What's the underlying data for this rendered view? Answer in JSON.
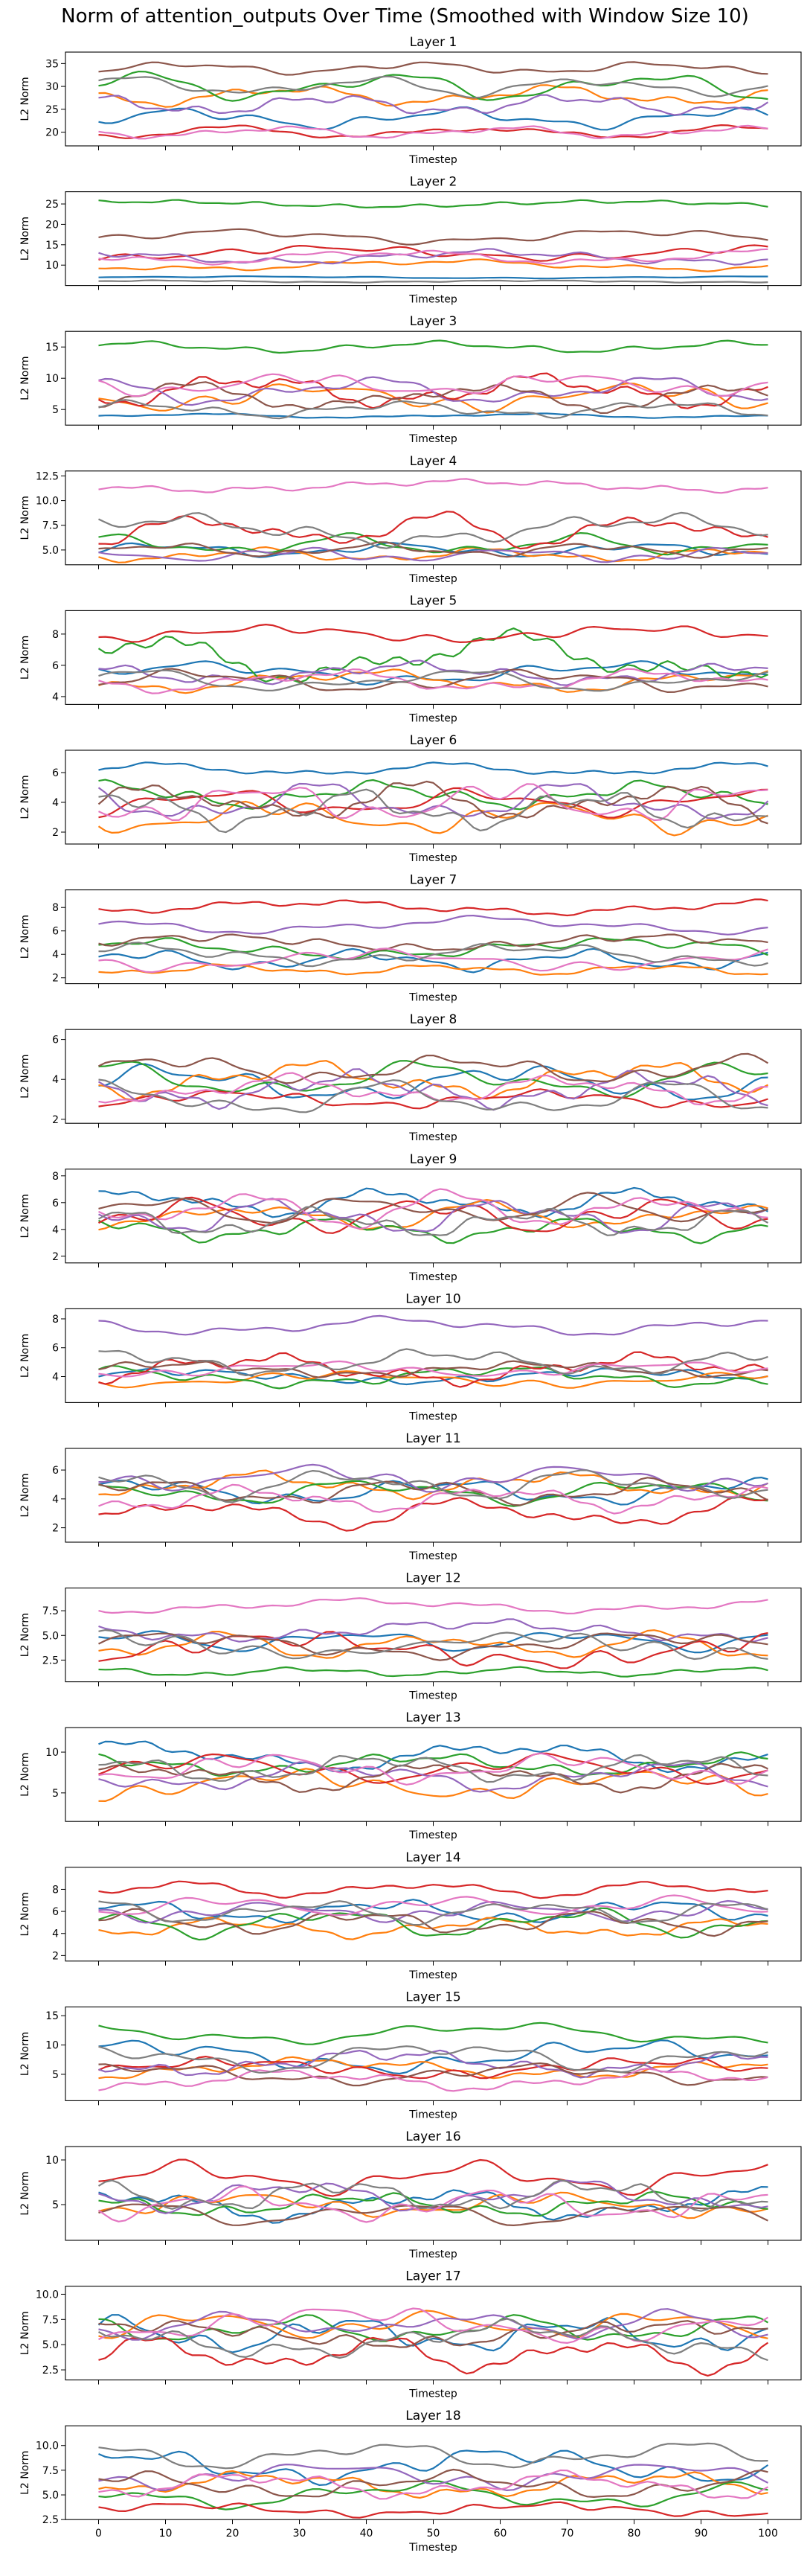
{
  "figure": {
    "suptitle": "Norm of attention_outputs Over Time (Smoothed with Window Size 10)"
  },
  "chart_data": {
    "type": "line",
    "xlabel": "Timestep",
    "ylabel": "L2 Norm",
    "x_range": [
      0,
      100
    ],
    "x_ticks": [
      0,
      10,
      20,
      30,
      40,
      50,
      60,
      70,
      80,
      90,
      100
    ],
    "series_colors": [
      "#1f77b4",
      "#ff7f0e",
      "#2ca02c",
      "#d62728",
      "#9467bd",
      "#8c564b",
      "#e377c2",
      "#7f7f7f"
    ],
    "legend": "none",
    "grid": false,
    "panels": [
      {
        "title": "Layer 1",
        "ylim": [
          17,
          37.5
        ],
        "yticks": [
          20,
          25,
          30,
          35
        ],
        "ytick_labels": [
          "20",
          "25",
          "30",
          "35"
        ],
        "levels": [
          23,
          28,
          30,
          20,
          26,
          34,
          20,
          30
        ],
        "swings": [
          2.5,
          2.5,
          3.5,
          1.5,
          2.5,
          1.5,
          1.5,
          2.5
        ]
      },
      {
        "title": "Layer 2",
        "ylim": [
          5,
          28
        ],
        "yticks": [
          10,
          15,
          20,
          25
        ],
        "ytick_labels": [
          "10",
          "15",
          "20",
          "25"
        ],
        "levels": [
          7,
          10,
          25,
          13,
          12,
          17,
          12,
          6
        ],
        "swings": [
          0.3,
          1.5,
          1,
          2,
          2,
          2,
          2,
          0.3
        ]
      },
      {
        "title": "Layer 3",
        "ylim": [
          2.5,
          17.5
        ],
        "yticks": [
          5,
          10,
          15
        ],
        "ytick_labels": [
          "5",
          "10",
          "15"
        ],
        "levels": [
          4,
          7,
          15,
          8,
          8,
          7,
          9,
          5
        ],
        "swings": [
          0.4,
          2.5,
          1,
          3,
          2.5,
          2.5,
          2,
          1.5
        ]
      },
      {
        "title": "Layer 4",
        "ylim": [
          3.5,
          13
        ],
        "yticks": [
          5,
          7.5,
          10,
          12.5
        ],
        "ytick_labels": [
          "5.0",
          "7.5",
          "10.0",
          "12.5"
        ],
        "levels": [
          5,
          4.5,
          5.5,
          7,
          4.5,
          5,
          11.5,
          7
        ],
        "swings": [
          0.8,
          0.8,
          1.2,
          2,
          0.8,
          0.8,
          0.7,
          1.8
        ]
      },
      {
        "title": "Layer 5",
        "ylim": [
          3.5,
          9.5
        ],
        "yticks": [
          4,
          6,
          8
        ],
        "ytick_labels": [
          "4",
          "6",
          "8"
        ],
        "levels": [
          5.5,
          5,
          6.5,
          8,
          5.5,
          5,
          5,
          5
        ],
        "swings": [
          0.8,
          0.8,
          1.8,
          0.6,
          0.8,
          0.8,
          0.8,
          0.8
        ]
      },
      {
        "title": "Layer 6",
        "ylim": [
          1.2,
          7.5
        ],
        "yticks": [
          2,
          4,
          6
        ],
        "ytick_labels": [
          "2",
          "4",
          "6"
        ],
        "levels": [
          6.2,
          3,
          4.5,
          4,
          4,
          4,
          4,
          3.5
        ],
        "swings": [
          0.5,
          1.2,
          1,
          1,
          1.5,
          1.5,
          1.5,
          1.5
        ]
      },
      {
        "title": "Layer 7",
        "ylim": [
          1.5,
          9.5
        ],
        "yticks": [
          2,
          4,
          6,
          8
        ],
        "ytick_labels": [
          "2",
          "4",
          "6",
          "8"
        ],
        "levels": [
          3.5,
          2.7,
          4.5,
          8,
          6.5,
          5,
          3.5,
          4
        ],
        "swings": [
          1,
          0.5,
          1,
          0.7,
          0.8,
          0.8,
          1,
          1
        ]
      },
      {
        "title": "Layer 8",
        "ylim": [
          1.8,
          6.5
        ],
        "yticks": [
          2,
          4,
          6
        ],
        "ytick_labels": [
          "2",
          "4",
          "6"
        ],
        "levels": [
          3.8,
          4,
          4,
          3,
          3.5,
          4.5,
          3.5,
          3
        ],
        "swings": [
          1,
          1,
          1,
          0.5,
          1,
          0.8,
          0.8,
          1
        ]
      },
      {
        "title": "Layer 9",
        "ylim": [
          1.5,
          8.5
        ],
        "yticks": [
          2,
          4,
          6,
          8
        ],
        "ytick_labels": [
          "2",
          "4",
          "6",
          "8"
        ],
        "levels": [
          6,
          5,
          4,
          5,
          5,
          5.5,
          5.5,
          4.5
        ],
        "swings": [
          1.2,
          1.2,
          1,
          1.5,
          1.5,
          1.2,
          1.5,
          1.2
        ]
      },
      {
        "title": "Layer 10",
        "ylim": [
          2.2,
          8.7
        ],
        "yticks": [
          4,
          6,
          8
        ],
        "ytick_labels": [
          "4",
          "6",
          "8"
        ],
        "levels": [
          4,
          3.8,
          4,
          4.5,
          7.5,
          4.5,
          4.5,
          5
        ],
        "swings": [
          0.6,
          0.6,
          0.8,
          1.2,
          0.7,
          0.6,
          0.6,
          1
        ]
      },
      {
        "title": "Layer 11",
        "ylim": [
          1,
          7.5
        ],
        "yticks": [
          2,
          4,
          6
        ],
        "ytick_labels": [
          "2",
          "4",
          "6"
        ],
        "levels": [
          4.5,
          5,
          4.5,
          3,
          5.5,
          4.5,
          4,
          5
        ],
        "swings": [
          1,
          1,
          1,
          1.2,
          1,
          1,
          1,
          1.2
        ]
      },
      {
        "title": "Layer 12",
        "ylim": [
          0.3,
          9.8
        ],
        "yticks": [
          2.5,
          5,
          7.5
        ],
        "ytick_labels": [
          "2.5",
          "5.0",
          "7.5"
        ],
        "levels": [
          4.5,
          4,
          1.3,
          3.5,
          5.5,
          4,
          8,
          4
        ],
        "swings": [
          1.2,
          1.5,
          0.5,
          2,
          1.2,
          1.5,
          0.8,
          1.5
        ]
      },
      {
        "title": "Layer 13",
        "ylim": [
          1.5,
          13
        ],
        "yticks": [
          5,
          10
        ],
        "ytick_labels": [
          "5",
          "10"
        ],
        "levels": [
          9.5,
          6,
          8.5,
          8,
          7,
          7,
          8,
          8
        ],
        "swings": [
          2,
          2,
          1.5,
          2,
          2,
          2,
          2,
          2
        ]
      },
      {
        "title": "Layer 14",
        "ylim": [
          1.5,
          10
        ],
        "yticks": [
          2,
          4,
          6,
          8
        ],
        "ytick_labels": [
          "2",
          "4",
          "6",
          "8"
        ],
        "levels": [
          6,
          4.5,
          5,
          8,
          6,
          5,
          6.5,
          6
        ],
        "swings": [
          1.2,
          1,
          1.5,
          0.8,
          1,
          1.2,
          1,
          1.2
        ]
      },
      {
        "title": "Layer 15",
        "ylim": [
          0.5,
          16.5
        ],
        "yticks": [
          5,
          10,
          15
        ],
        "ytick_labels": [
          "5",
          "10",
          "15"
        ],
        "levels": [
          8,
          6,
          12,
          6,
          7,
          5,
          4,
          8
        ],
        "swings": [
          3,
          2,
          2,
          2,
          2.5,
          2,
          2,
          3
        ]
      },
      {
        "title": "Layer 16",
        "ylim": [
          1,
          11.5
        ],
        "yticks": [
          5,
          10
        ],
        "ytick_labels": [
          "5",
          "10"
        ],
        "levels": [
          5,
          5,
          5,
          8,
          6,
          4,
          5,
          6
        ],
        "swings": [
          2,
          1.5,
          1.5,
          2,
          2,
          1.5,
          2,
          2
        ]
      },
      {
        "title": "Layer 17",
        "ylim": [
          1.5,
          10.8
        ],
        "yticks": [
          2.5,
          5,
          7.5,
          10
        ],
        "ytick_labels": [
          "2.5",
          "5.0",
          "7.5",
          "10.0"
        ],
        "levels": [
          6,
          7,
          6.5,
          4,
          7,
          6,
          7,
          5.5
        ],
        "swings": [
          2,
          1.5,
          1.5,
          2,
          1.5,
          1.5,
          2,
          2
        ]
      },
      {
        "title": "Layer 18",
        "ylim": [
          2.5,
          12
        ],
        "yticks": [
          2.5,
          5,
          7.5,
          10
        ],
        "ytick_labels": [
          "2.5",
          "5.0",
          "7.5",
          "10.0"
        ],
        "levels": [
          8,
          6,
          5,
          3.5,
          7,
          6,
          6,
          9
        ],
        "swings": [
          2,
          1.5,
          1.5,
          0.8,
          1.5,
          1.5,
          1.5,
          1.5
        ]
      }
    ]
  }
}
